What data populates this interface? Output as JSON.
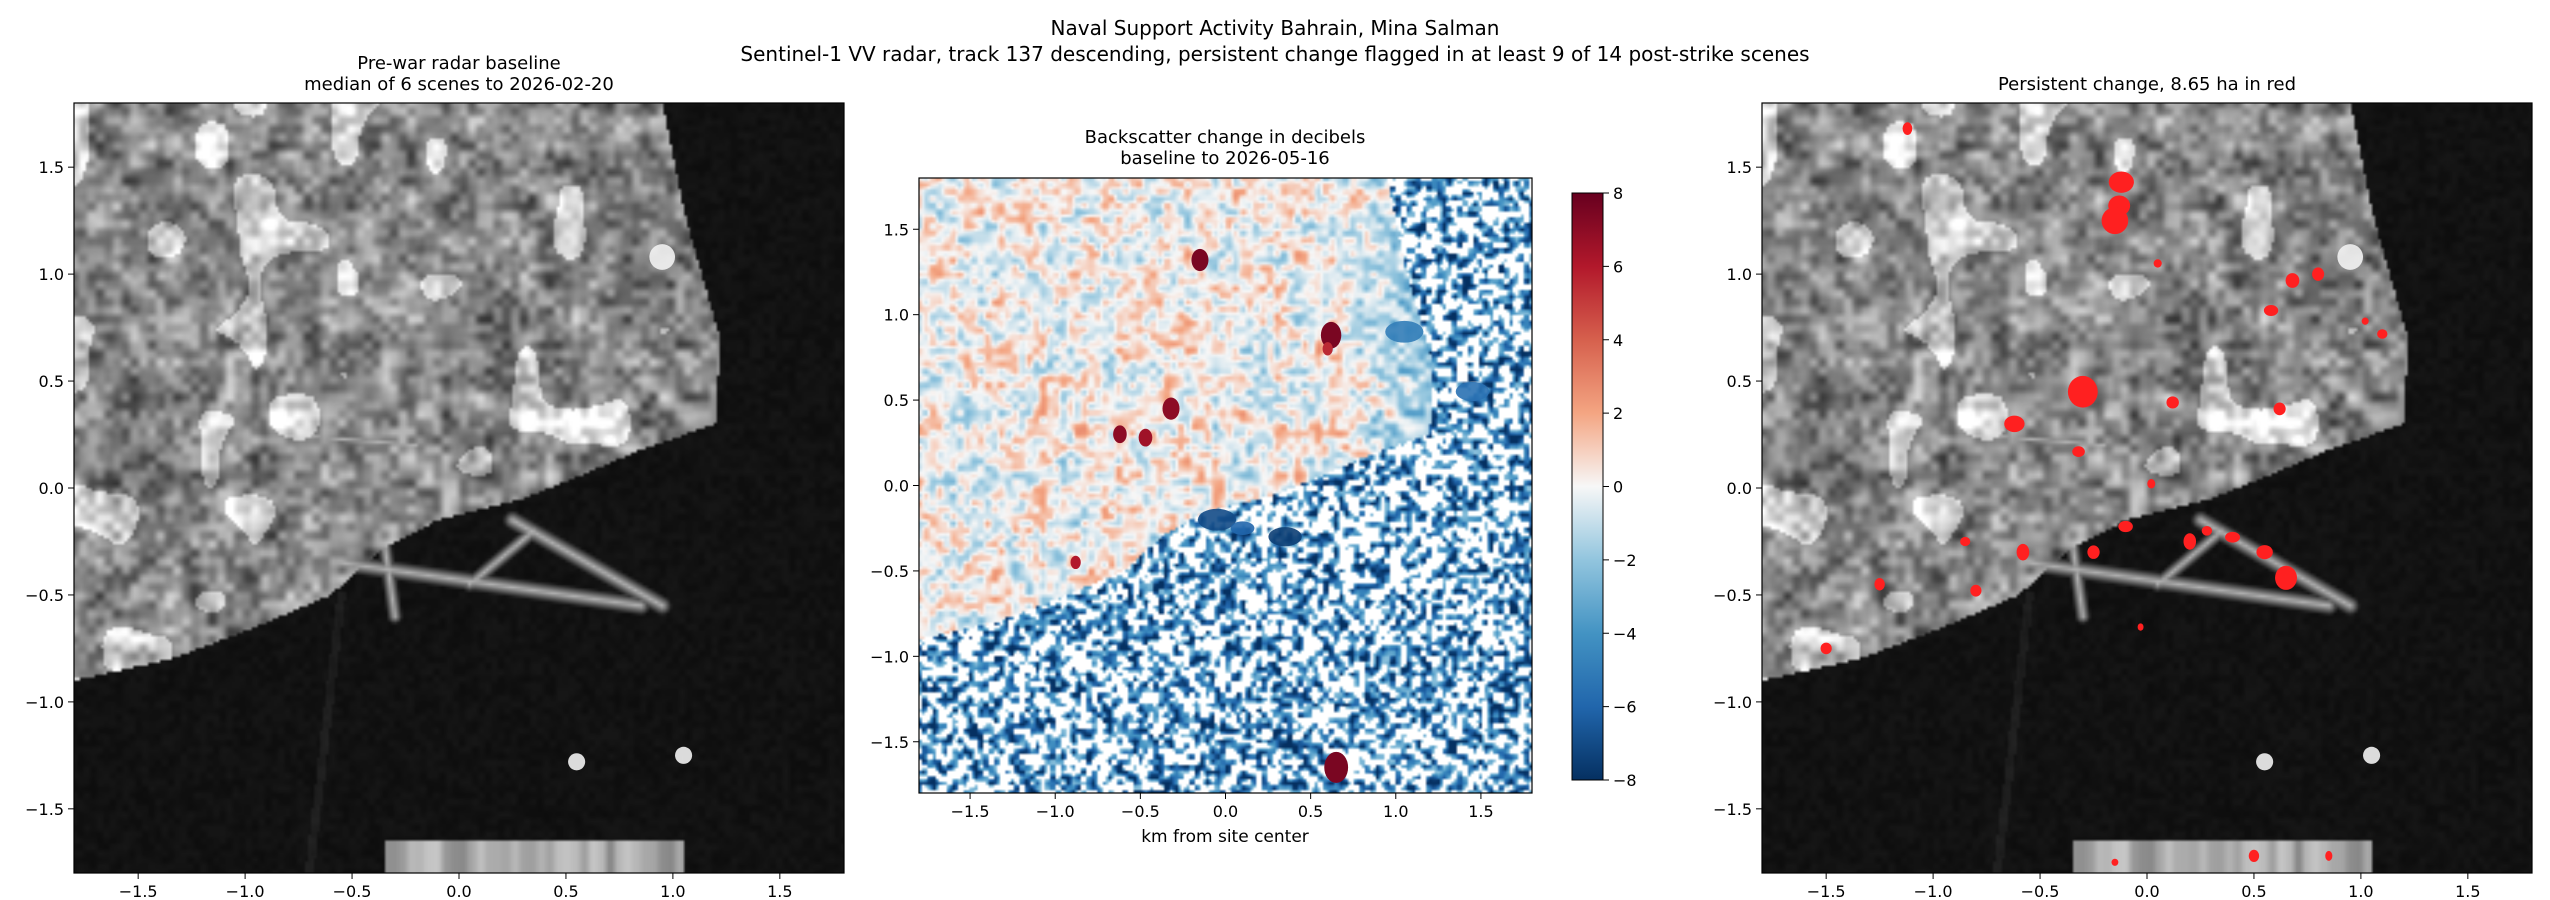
{
  "figure": {
    "title_line1": "Naval Support Activity Bahrain, Mina Salman",
    "title_line2": "Sentinel-1 VV radar, track 137 descending, persistent change flagged in at least 9 of 14 post-strike scenes"
  },
  "chart_data": [
    {
      "type": "heatmap",
      "panel": "baseline",
      "title_line1": "Pre-war radar baseline",
      "title_line2": "median of 6 scenes to 2026-02-20",
      "colormap": "gray",
      "xlim": [
        -1.8,
        1.8
      ],
      "ylim": [
        -1.8,
        1.8
      ],
      "xticks": [
        -1.5,
        -1.0,
        -0.5,
        0.0,
        0.5,
        1.0,
        1.5
      ],
      "yticks": [
        -1.5,
        -1.0,
        -0.5,
        0.0,
        0.5,
        1.0,
        1.5
      ],
      "xlabel": "",
      "ylabel": "",
      "bright_features": [
        {
          "x": 0.95,
          "y": 1.08,
          "r": 0.06
        },
        {
          "x": 0.55,
          "y": -1.28,
          "r": 0.04
        },
        {
          "x": 1.05,
          "y": -1.25,
          "r": 0.04
        }
      ]
    },
    {
      "type": "heatmap",
      "panel": "change",
      "title_line1": "Backscatter change in decibels",
      "title_line2": "baseline to 2026-05-16",
      "colormap": "RdBu_r",
      "xlim": [
        -1.8,
        1.8
      ],
      "ylim": [
        -1.8,
        1.8
      ],
      "xticks": [
        -1.5,
        -1.0,
        -0.5,
        0.0,
        0.5,
        1.0,
        1.5
      ],
      "yticks": [
        -1.5,
        -1.0,
        -0.5,
        0.0,
        0.5,
        1.0,
        1.5
      ],
      "xlabel": "km from site center",
      "ylabel": "",
      "colorbar": {
        "min": -8,
        "max": 8,
        "ticks": [
          8,
          6,
          4,
          2,
          0,
          -2,
          -4,
          -6,
          -8
        ]
      },
      "hotspots": [
        {
          "x": -0.15,
          "y": 1.32,
          "db": 7.5,
          "r": 0.05
        },
        {
          "x": 0.62,
          "y": 0.88,
          "db": 7.5,
          "r": 0.06
        },
        {
          "x": -0.32,
          "y": 0.45,
          "db": 7.0,
          "r": 0.05
        },
        {
          "x": -0.62,
          "y": 0.3,
          "db": 7.0,
          "r": 0.04
        },
        {
          "x": -0.47,
          "y": 0.28,
          "db": 6.5,
          "r": 0.04
        },
        {
          "x": 0.65,
          "y": -1.65,
          "db": 7.5,
          "r": 0.07
        },
        {
          "x": -0.88,
          "y": -0.45,
          "db": 6.0,
          "r": 0.03
        },
        {
          "x": 0.6,
          "y": 0.8,
          "db": 5.5,
          "r": 0.03
        }
      ],
      "coldspots": [
        {
          "x": -0.05,
          "y": -0.2,
          "db": -7.0,
          "r": 0.08
        },
        {
          "x": 0.35,
          "y": -0.3,
          "db": -7.5,
          "r": 0.07
        },
        {
          "x": 0.1,
          "y": -0.25,
          "db": -6.0,
          "r": 0.05
        },
        {
          "x": 1.05,
          "y": 0.9,
          "db": -5.0,
          "r": 0.08
        },
        {
          "x": 1.45,
          "y": 0.55,
          "db": -5.5,
          "r": 0.07
        }
      ]
    },
    {
      "type": "heatmap",
      "panel": "persistent-change",
      "title_line1": "Persistent change, 8.65 ha in red",
      "colormap": "gray",
      "overlay_color": "#ff2020",
      "xlim": [
        -1.8,
        1.8
      ],
      "ylim": [
        -1.8,
        1.8
      ],
      "xticks": [
        -1.5,
        -1.0,
        -0.5,
        0.0,
        0.5,
        1.0,
        1.5
      ],
      "yticks": [
        -1.5,
        -1.0,
        -0.5,
        0.0,
        0.5,
        1.0,
        1.5
      ],
      "xlabel": "",
      "ylabel": "",
      "flagged_patches": [
        {
          "x": -0.12,
          "y": 1.43,
          "r": 0.05
        },
        {
          "x": -0.13,
          "y": 1.32,
          "r": 0.05
        },
        {
          "x": -0.15,
          "y": 1.25,
          "r": 0.06
        },
        {
          "x": -1.12,
          "y": 1.68,
          "r": 0.025
        },
        {
          "x": 0.05,
          "y": 1.05,
          "r": 0.02
        },
        {
          "x": 0.68,
          "y": 0.97,
          "r": 0.035
        },
        {
          "x": 0.58,
          "y": 0.83,
          "r": 0.03
        },
        {
          "x": 0.8,
          "y": 1.0,
          "r": 0.03
        },
        {
          "x": 1.1,
          "y": 0.72,
          "r": 0.025
        },
        {
          "x": 1.02,
          "y": 0.78,
          "r": 0.02
        },
        {
          "x": -0.3,
          "y": 0.45,
          "r": 0.07
        },
        {
          "x": -0.62,
          "y": 0.3,
          "r": 0.045
        },
        {
          "x": -0.32,
          "y": 0.17,
          "r": 0.025
        },
        {
          "x": 0.12,
          "y": 0.4,
          "r": 0.025
        },
        {
          "x": 0.62,
          "y": 0.37,
          "r": 0.025
        },
        {
          "x": 0.02,
          "y": 0.02,
          "r": 0.02
        },
        {
          "x": -0.1,
          "y": -0.18,
          "r": 0.03
        },
        {
          "x": 0.2,
          "y": -0.25,
          "r": 0.035
        },
        {
          "x": 0.28,
          "y": -0.2,
          "r": 0.025
        },
        {
          "x": 0.4,
          "y": -0.23,
          "r": 0.03
        },
        {
          "x": 0.55,
          "y": -0.3,
          "r": 0.035
        },
        {
          "x": 0.65,
          "y": -0.42,
          "r": 0.055
        },
        {
          "x": -0.25,
          "y": -0.3,
          "r": 0.03
        },
        {
          "x": -0.85,
          "y": -0.25,
          "r": 0.025
        },
        {
          "x": -0.58,
          "y": -0.3,
          "r": 0.035
        },
        {
          "x": -1.25,
          "y": -0.45,
          "r": 0.025
        },
        {
          "x": -0.8,
          "y": -0.48,
          "r": 0.025
        },
        {
          "x": -1.5,
          "y": -0.75,
          "r": 0.025
        },
        {
          "x": -0.03,
          "y": -0.65,
          "r": 0.015
        },
        {
          "x": -0.15,
          "y": -1.75,
          "r": 0.02
        },
        {
          "x": 0.5,
          "y": -1.72,
          "r": 0.025
        },
        {
          "x": 0.85,
          "y": -1.72,
          "r": 0.02
        }
      ]
    }
  ]
}
